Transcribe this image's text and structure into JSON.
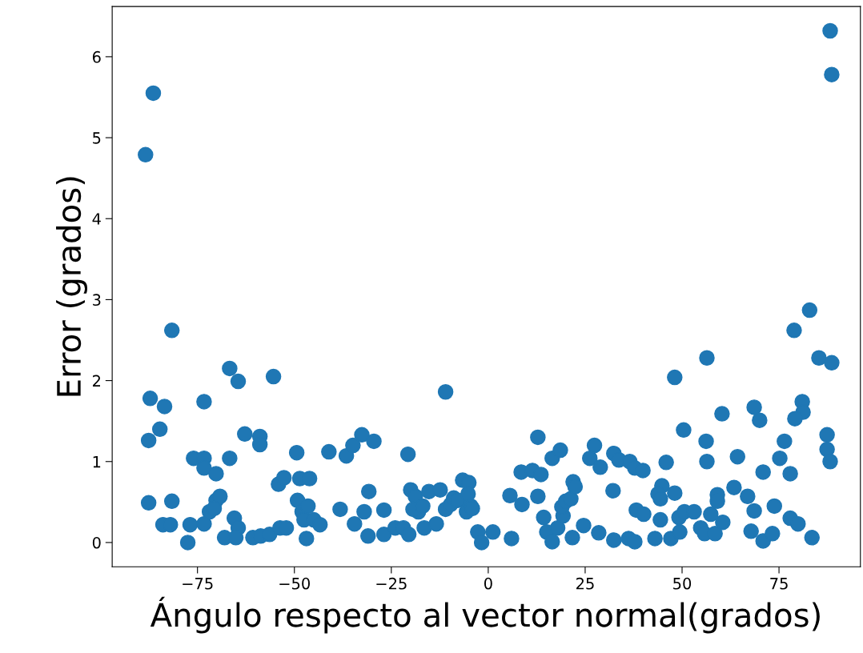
{
  "chart_data": {
    "type": "scatter",
    "xlabel": "Ángulo respecto al vector normal(grados)",
    "ylabel": "Error (grados)",
    "xlim": [
      -97,
      96
    ],
    "ylim": [
      -0.3,
      6.62
    ],
    "xticks": [
      {
        "value": -75,
        "label": "−75"
      },
      {
        "value": -50,
        "label": "−50"
      },
      {
        "value": -25,
        "label": "−25"
      },
      0,
      25,
      50,
      75
    ],
    "yticks": [
      0,
      1,
      2,
      3,
      4,
      5,
      6
    ],
    "grid": false,
    "marker": "circle",
    "series": [
      {
        "color": "#1f77b4",
        "x": [
          -88.4,
          -86.4,
          -81.6,
          -87.2,
          -87.6,
          -84.7,
          -83.5,
          -87.6,
          -81.6,
          -83.9,
          -82.0,
          -77.5,
          -76.9,
          -76.0,
          -73.3,
          -73.3,
          -73.3,
          -70.2,
          -73.3,
          -71.9,
          -70.2,
          -69.2,
          -70.7,
          -66.7,
          -64.5,
          -66.7,
          -68.0,
          -65.5,
          -64.5,
          -65.1,
          -62.8,
          -60.7,
          -58.9,
          -58.9,
          -58.7,
          -56.4,
          -55.4,
          -54.1,
          -52.7,
          -53.7,
          -52.1,
          -49.4,
          -48.6,
          -49.2,
          -48.0,
          -47.5,
          -46.5,
          -46.9,
          -46.1,
          -45.0,
          -43.4,
          -41.1,
          -38.2,
          -36.6,
          -34.9,
          -32.6,
          -34.5,
          -32.0,
          -31.0,
          -30.8,
          -29.5,
          -26.9,
          -26.9,
          -24.0,
          -20.7,
          -21.9,
          -20.5,
          -20.0,
          -18.8,
          -18.0,
          -19.4,
          -16.9,
          -16.5,
          -15.3,
          -13.4,
          -12.4,
          -11.0,
          -11.0,
          -9.7,
          -8.9,
          -7.9,
          -6.6,
          -5.0,
          -5.2,
          -5.6,
          -4.5,
          -4.1,
          -2.7,
          -1.7,
          1.2,
          6.0,
          5.6,
          8.7,
          8.5,
          11.4,
          13.6,
          12.8,
          12.8,
          14.3,
          16.5,
          18.6,
          15.1,
          16.5,
          17.9,
          19.3,
          19.0,
          20.0,
          21.3,
          21.9,
          22.4,
          21.7,
          24.6,
          26.2,
          27.4,
          28.9,
          28.5,
          32.2,
          32.4,
          33.7,
          32.4,
          36.5,
          37.8,
          39.9,
          36.2,
          37.8,
          38.2,
          40.1,
          43.0,
          44.4,
          44.8,
          43.8,
          44.4,
          45.9,
          48.1,
          47.1,
          49.2,
          49.4,
          50.6,
          53.1,
          48.1,
          50.4,
          54.8,
          55.8,
          57.4,
          58.5,
          60.5,
          59.1,
          59.1,
          56.2,
          56.4,
          56.4,
          60.3,
          63.4,
          64.3,
          66.9,
          68.6,
          67.8,
          68.6,
          70.0,
          70.9,
          70.9,
          73.3,
          73.8,
          75.2,
          76.4,
          77.9,
          77.9,
          79.9,
          78.9,
          81.0,
          81.2,
          79.1,
          82.9,
          83.5,
          85.3,
          88.6,
          87.4,
          87.4,
          88.2,
          88.2,
          88.6
        ],
        "values": [
          4.79,
          5.55,
          2.62,
          1.78,
          1.26,
          1.4,
          1.68,
          0.49,
          0.51,
          0.22,
          0.22,
          0.0,
          0.22,
          1.04,
          1.04,
          1.74,
          0.92,
          0.85,
          0.23,
          0.38,
          0.52,
          0.57,
          0.42,
          2.15,
          1.99,
          1.04,
          0.06,
          0.3,
          0.18,
          0.06,
          1.34,
          0.06,
          1.31,
          1.21,
          0.08,
          0.1,
          2.05,
          0.72,
          0.8,
          0.18,
          0.18,
          1.11,
          0.79,
          0.52,
          0.38,
          0.28,
          0.45,
          0.05,
          0.79,
          0.28,
          0.22,
          1.12,
          0.41,
          1.07,
          1.2,
          1.33,
          0.23,
          0.38,
          0.08,
          0.63,
          1.25,
          0.4,
          0.1,
          0.18,
          1.09,
          0.18,
          0.1,
          0.65,
          0.57,
          0.38,
          0.41,
          0.45,
          0.18,
          0.63,
          0.23,
          0.65,
          1.86,
          0.41,
          0.47,
          0.55,
          0.52,
          0.77,
          0.74,
          0.6,
          0.38,
          0.45,
          0.42,
          0.13,
          0.0,
          0.13,
          0.05,
          0.58,
          0.47,
          0.87,
          0.89,
          0.84,
          1.3,
          0.57,
          0.31,
          1.04,
          1.14,
          0.13,
          0.01,
          0.18,
          0.33,
          0.44,
          0.51,
          0.54,
          0.75,
          0.69,
          0.06,
          0.21,
          1.04,
          1.2,
          0.93,
          0.12,
          0.64,
          1.1,
          1.02,
          0.03,
          1.0,
          0.92,
          0.89,
          0.05,
          0.01,
          0.4,
          0.35,
          0.05,
          0.28,
          0.7,
          0.6,
          0.54,
          0.99,
          0.61,
          0.05,
          0.31,
          0.13,
          0.38,
          0.38,
          2.04,
          1.39,
          0.18,
          0.11,
          0.35,
          0.11,
          0.25,
          0.59,
          0.51,
          1.25,
          1.0,
          2.28,
          1.59,
          0.68,
          1.06,
          0.57,
          0.39,
          0.14,
          1.67,
          1.51,
          0.87,
          0.02,
          0.11,
          0.45,
          1.04,
          1.25,
          0.85,
          0.3,
          0.23,
          2.62,
          1.74,
          1.61,
          1.53,
          2.87,
          0.06,
          2.28,
          2.22,
          1.33,
          1.15,
          1.0,
          6.32,
          5.78
        ]
      }
    ]
  }
}
